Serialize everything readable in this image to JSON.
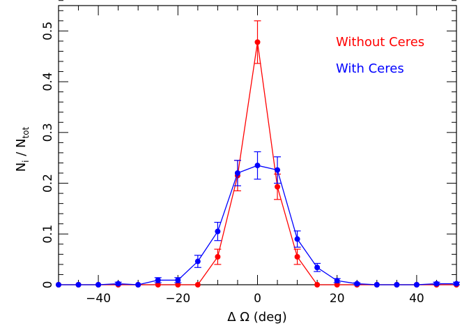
{
  "chart_data": {
    "type": "line",
    "title": "",
    "xlabel": "Δ Ω (deg)",
    "ylabel": {
      "main": "N",
      "sub1": "i",
      "sep": " / ",
      "main2": "N",
      "sub2": "tot"
    },
    "xlim": [
      -50,
      50
    ],
    "ylim": [
      0,
      0.55
    ],
    "x_ticks": [
      -40,
      -20,
      0,
      20,
      40
    ],
    "y_ticks": [
      0,
      0.1,
      0.2,
      0.3,
      0.4,
      0.5
    ],
    "x_tick_labels": [
      "−40",
      "−20",
      "0",
      "20",
      "40"
    ],
    "y_tick_labels": [
      "0",
      "0.1",
      "0.2",
      "0.3",
      "0.4",
      "0.5"
    ],
    "legend_position": "top-right",
    "grid": false,
    "series": [
      {
        "name": "Without Ceres",
        "color": "#ff0000",
        "x": [
          -50,
          -45,
          -40,
          -35,
          -30,
          -25,
          -20,
          -15,
          -10,
          -5,
          0,
          5,
          10,
          15,
          20,
          25,
          30,
          35,
          40,
          45,
          50
        ],
        "y": [
          0,
          0,
          0,
          0,
          0,
          0,
          0,
          0,
          0.055,
          0.215,
          0.478,
          0.193,
          0.055,
          0,
          0,
          0,
          0,
          0,
          0,
          0,
          0
        ],
        "err": [
          0,
          0,
          0,
          0,
          0,
          0,
          0,
          0,
          0.015,
          0.03,
          0.042,
          0.025,
          0.015,
          0,
          0,
          0,
          0,
          0,
          0,
          0,
          0
        ]
      },
      {
        "name": "With Ceres",
        "color": "#0000ff",
        "x": [
          -50,
          -45,
          -40,
          -35,
          -30,
          -25,
          -20,
          -15,
          -10,
          -5,
          0,
          5,
          10,
          15,
          20,
          25,
          30,
          35,
          40,
          45,
          50
        ],
        "y": [
          0,
          0,
          0,
          0.002,
          0,
          0.009,
          0.009,
          0.046,
          0.105,
          0.22,
          0.235,
          0.226,
          0.09,
          0.034,
          0.008,
          0.002,
          0,
          0,
          0,
          0.002,
          0.002
        ],
        "err": [
          0,
          0,
          0,
          0.003,
          0,
          0.005,
          0.005,
          0.012,
          0.018,
          0.025,
          0.027,
          0.026,
          0.016,
          0.008,
          0.004,
          0.002,
          0,
          0,
          0,
          0.003,
          0.003
        ]
      }
    ]
  }
}
